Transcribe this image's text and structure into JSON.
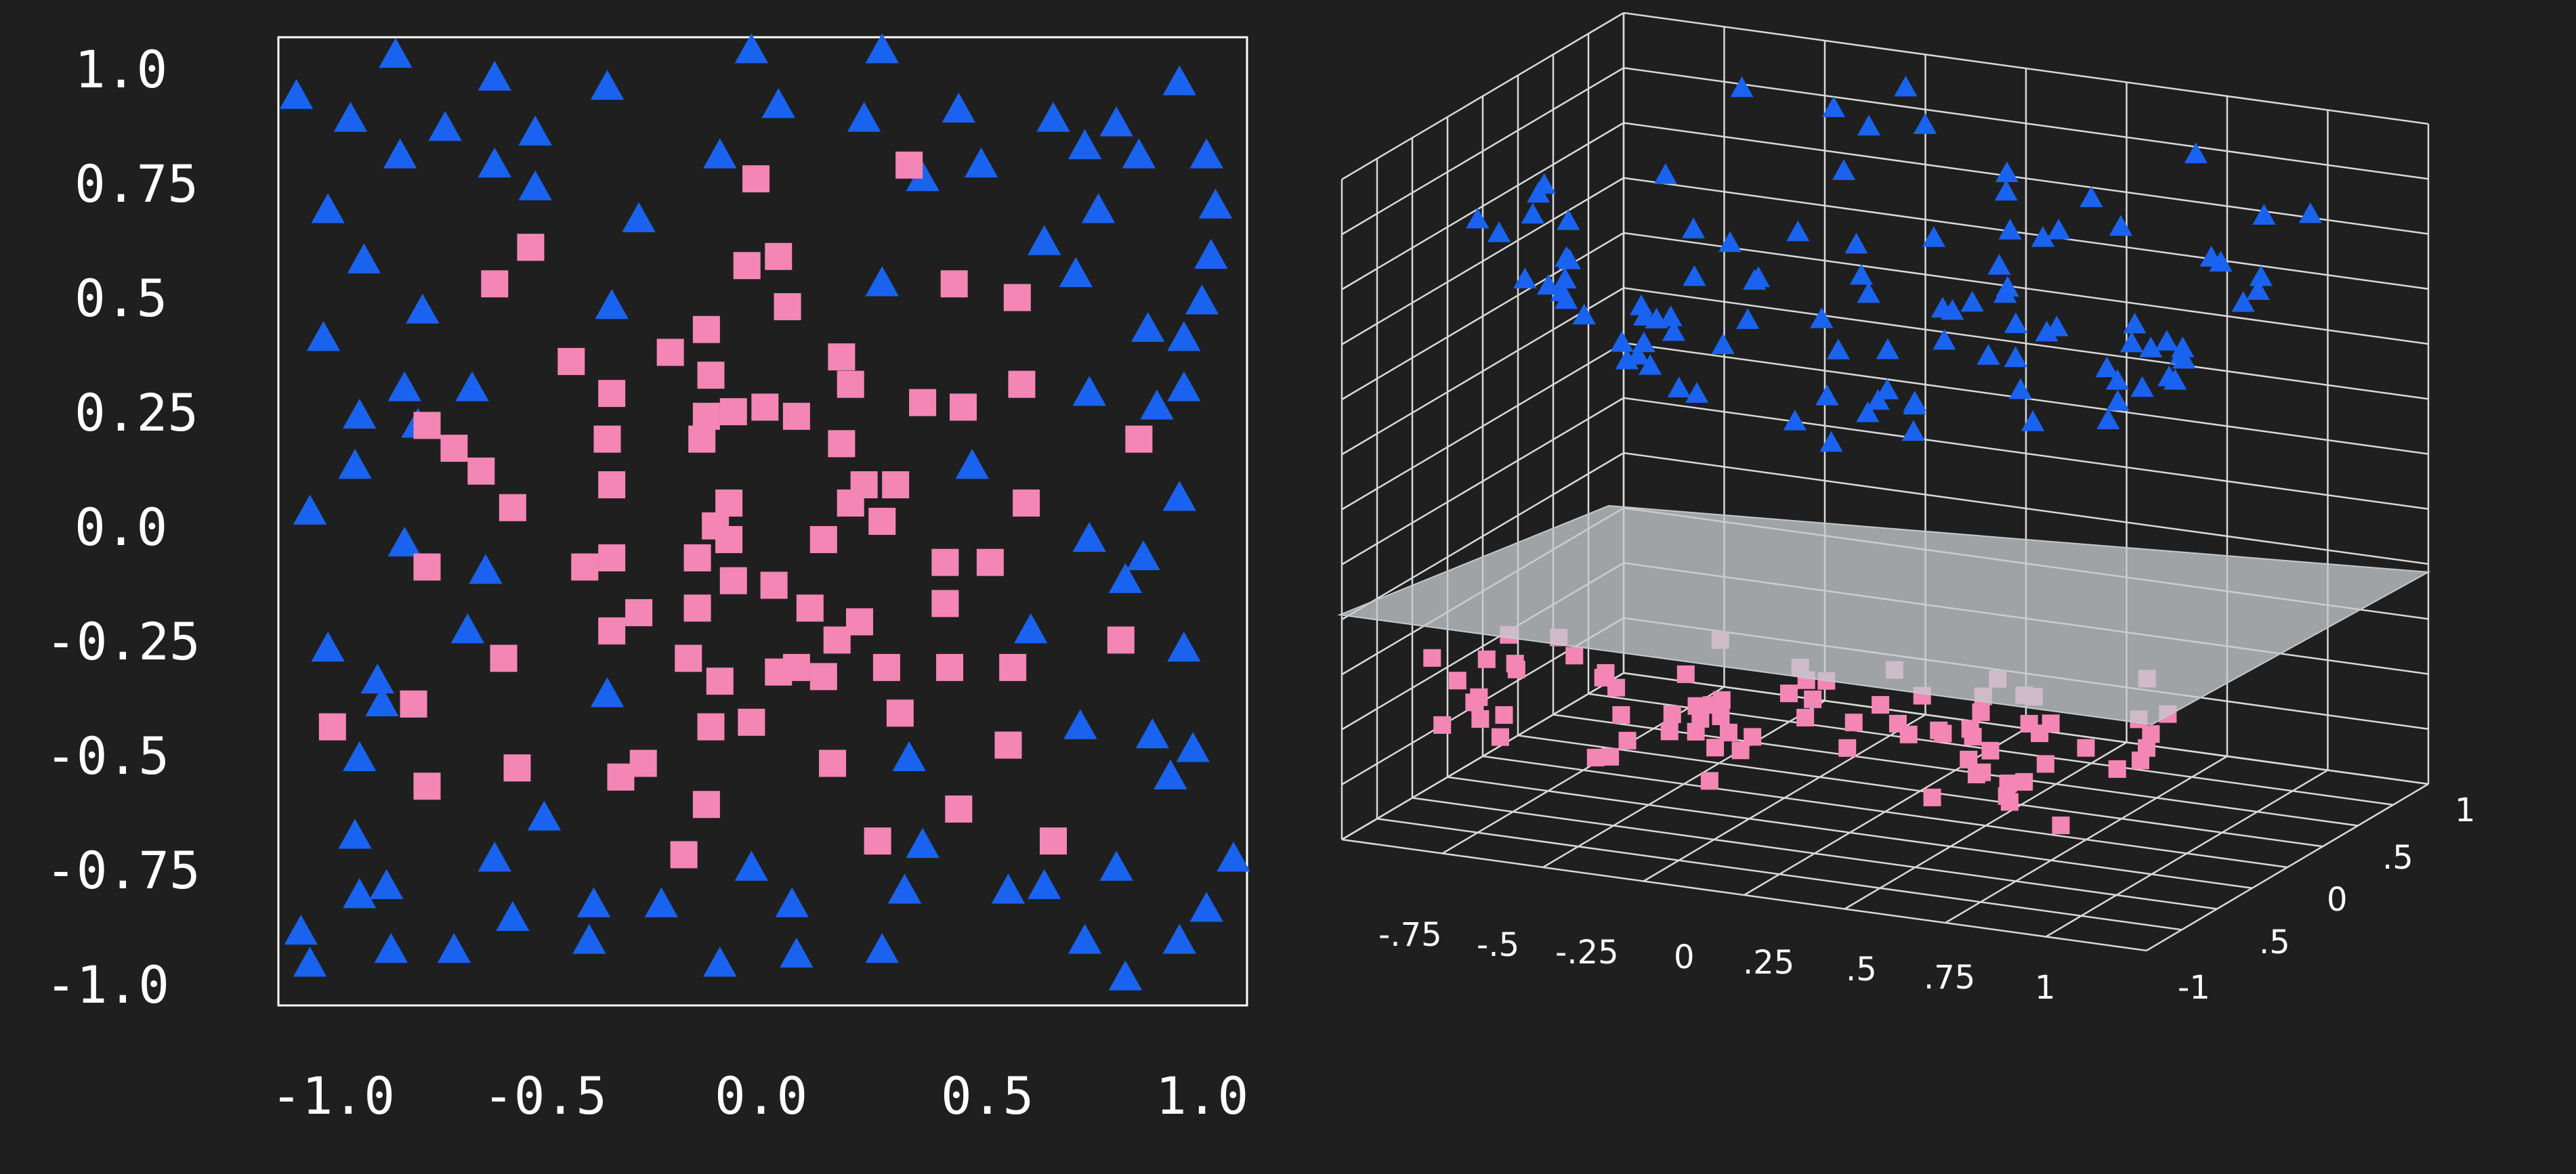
{
  "colors": {
    "background": "#1f1f1f",
    "outer_class_triangle": "#1a63f0",
    "inner_class_square": "#f486b5",
    "frame": "#ffffff",
    "grid": "#d9d9d9",
    "plane": "#c4c9cc"
  },
  "chart_data": [
    {
      "type": "scatter",
      "title": "",
      "xlabel": "",
      "ylabel": "",
      "xlim": [
        -1.1,
        1.05
      ],
      "ylim": [
        -1.05,
        1.07
      ],
      "grid": false,
      "legend": "none",
      "x_ticks": [
        "-1.0",
        "-0.5",
        "0.0",
        "0.5",
        "1.0"
      ],
      "y_ticks": [
        "1.0",
        "0.75",
        "0.5",
        "0.25",
        "0.0",
        "-0.25",
        "-0.5",
        "-0.75",
        "-1.0"
      ],
      "series": [
        {
          "marker": "triangle",
          "color": "#1a63f0",
          "points": [
            [
              -1.06,
              0.94
            ],
            [
              -0.84,
              1.03
            ],
            [
              -0.62,
              0.98
            ],
            [
              -0.37,
              0.96
            ],
            [
              -0.05,
              1.04
            ],
            [
              0.24,
              1.04
            ],
            [
              -0.94,
              0.89
            ],
            [
              -0.73,
              0.87
            ],
            [
              -0.53,
              0.86
            ],
            [
              0.01,
              0.92
            ],
            [
              0.2,
              0.89
            ],
            [
              0.41,
              0.91
            ],
            [
              0.62,
              0.89
            ],
            [
              0.76,
              0.88
            ],
            [
              0.9,
              0.97
            ],
            [
              -0.83,
              0.81
            ],
            [
              -0.62,
              0.79
            ],
            [
              -0.12,
              0.81
            ],
            [
              0.33,
              0.76
            ],
            [
              0.46,
              0.79
            ],
            [
              0.69,
              0.83
            ],
            [
              0.81,
              0.81
            ],
            [
              0.96,
              0.81
            ],
            [
              -0.99,
              0.69
            ],
            [
              -0.53,
              0.74
            ],
            [
              -0.3,
              0.67
            ],
            [
              0.72,
              0.69
            ],
            [
              0.98,
              0.7
            ],
            [
              -0.91,
              0.58
            ],
            [
              0.6,
              0.62
            ],
            [
              0.97,
              0.59
            ],
            [
              -0.78,
              0.47
            ],
            [
              -0.36,
              0.48
            ],
            [
              0.24,
              0.53
            ],
            [
              0.67,
              0.55
            ],
            [
              0.95,
              0.49
            ],
            [
              -1.0,
              0.41
            ],
            [
              0.83,
              0.43
            ],
            [
              0.91,
              0.41
            ],
            [
              -0.82,
              0.3
            ],
            [
              -0.67,
              0.3
            ],
            [
              -0.92,
              0.24
            ],
            [
              0.7,
              0.29
            ],
            [
              0.91,
              0.3
            ],
            [
              -0.79,
              0.22
            ],
            [
              0.85,
              0.26
            ],
            [
              -0.93,
              0.13
            ],
            [
              0.44,
              0.13
            ],
            [
              -1.03,
              0.03
            ],
            [
              0.9,
              0.06
            ],
            [
              -0.82,
              -0.04
            ],
            [
              -0.64,
              -0.1
            ],
            [
              0.7,
              -0.03
            ],
            [
              0.82,
              -0.07
            ],
            [
              0.78,
              -0.12
            ],
            [
              -0.68,
              -0.23
            ],
            [
              0.57,
              -0.23
            ],
            [
              -0.99,
              -0.27
            ],
            [
              0.91,
              -0.27
            ],
            [
              -0.88,
              -0.34
            ],
            [
              -0.37,
              -0.37
            ],
            [
              0.68,
              -0.44
            ],
            [
              -0.87,
              -0.39
            ],
            [
              0.84,
              -0.46
            ],
            [
              -0.92,
              -0.51
            ],
            [
              0.3,
              -0.51
            ],
            [
              0.93,
              -0.49
            ],
            [
              0.88,
              -0.55
            ],
            [
              -0.51,
              -0.64
            ],
            [
              -0.93,
              -0.68
            ],
            [
              0.33,
              -0.7
            ],
            [
              -0.62,
              -0.73
            ],
            [
              -0.05,
              -0.75
            ],
            [
              -0.86,
              -0.79
            ],
            [
              -0.92,
              -0.81
            ],
            [
              0.29,
              -0.8
            ],
            [
              0.52,
              -0.8
            ],
            [
              0.6,
              -0.79
            ],
            [
              0.76,
              -0.75
            ],
            [
              1.02,
              -0.73
            ],
            [
              -0.58,
              -0.86
            ],
            [
              -0.4,
              -0.83
            ],
            [
              -0.25,
              -0.83
            ],
            [
              0.04,
              -0.83
            ],
            [
              0.96,
              -0.84
            ],
            [
              -1.05,
              -0.89
            ],
            [
              -0.41,
              -0.91
            ],
            [
              0.69,
              -0.91
            ],
            [
              0.9,
              -0.91
            ],
            [
              -0.85,
              -0.93
            ],
            [
              -0.71,
              -0.93
            ],
            [
              0.24,
              -0.93
            ],
            [
              -1.03,
              -0.96
            ],
            [
              -0.12,
              -0.96
            ],
            [
              0.05,
              -0.94
            ],
            [
              0.78,
              -0.99
            ]
          ]
        },
        {
          "marker": "square",
          "color": "#f486b5",
          "points": [
            [
              -0.04,
              0.76
            ],
            [
              0.3,
              0.79
            ],
            [
              -0.54,
              0.61
            ],
            [
              -0.62,
              0.53
            ],
            [
              -0.06,
              0.57
            ],
            [
              0.01,
              0.59
            ],
            [
              0.03,
              0.48
            ],
            [
              0.4,
              0.53
            ],
            [
              0.54,
              0.5
            ],
            [
              -0.45,
              0.36
            ],
            [
              -0.23,
              0.38
            ],
            [
              -0.15,
              0.43
            ],
            [
              0.15,
              0.37
            ],
            [
              0.17,
              0.31
            ],
            [
              -0.36,
              0.29
            ],
            [
              -0.14,
              0.33
            ],
            [
              -0.15,
              0.24
            ],
            [
              -0.09,
              0.25
            ],
            [
              -0.02,
              0.26
            ],
            [
              0.05,
              0.24
            ],
            [
              0.33,
              0.27
            ],
            [
              0.42,
              0.26
            ],
            [
              0.55,
              0.31
            ],
            [
              0.81,
              0.19
            ],
            [
              -0.77,
              0.22
            ],
            [
              -0.71,
              0.17
            ],
            [
              -0.65,
              0.12
            ],
            [
              -0.37,
              0.19
            ],
            [
              -0.16,
              0.19
            ],
            [
              0.15,
              0.18
            ],
            [
              -0.58,
              0.04
            ],
            [
              -0.36,
              0.09
            ],
            [
              -0.1,
              0.05
            ],
            [
              -0.13,
              0.0
            ],
            [
              -0.1,
              -0.03
            ],
            [
              0.17,
              0.05
            ],
            [
              0.27,
              0.09
            ],
            [
              0.2,
              0.09
            ],
            [
              0.24,
              0.01
            ],
            [
              0.56,
              0.05
            ],
            [
              0.11,
              -0.03
            ],
            [
              -0.42,
              -0.09
            ],
            [
              -0.36,
              -0.07
            ],
            [
              -0.17,
              -0.07
            ],
            [
              -0.09,
              -0.12
            ],
            [
              0.0,
              -0.13
            ],
            [
              0.38,
              -0.08
            ],
            [
              0.48,
              -0.08
            ],
            [
              -0.77,
              -0.09
            ],
            [
              -0.36,
              -0.23
            ],
            [
              -0.3,
              -0.19
            ],
            [
              -0.17,
              -0.18
            ],
            [
              0.08,
              -0.18
            ],
            [
              0.19,
              -0.21
            ],
            [
              0.38,
              -0.17
            ],
            [
              -0.6,
              -0.29
            ],
            [
              -0.19,
              -0.29
            ],
            [
              -0.12,
              -0.34
            ],
            [
              0.01,
              -0.32
            ],
            [
              0.05,
              -0.31
            ],
            [
              0.11,
              -0.33
            ],
            [
              0.14,
              -0.25
            ],
            [
              0.25,
              -0.31
            ],
            [
              0.39,
              -0.31
            ],
            [
              0.53,
              -0.31
            ],
            [
              0.77,
              -0.25
            ],
            [
              -0.8,
              -0.39
            ],
            [
              -0.98,
              -0.44
            ],
            [
              -0.14,
              -0.44
            ],
            [
              -0.05,
              -0.43
            ],
            [
              0.28,
              -0.41
            ],
            [
              -0.57,
              -0.53
            ],
            [
              -0.34,
              -0.55
            ],
            [
              -0.29,
              -0.52
            ],
            [
              0.13,
              -0.52
            ],
            [
              0.52,
              -0.48
            ],
            [
              -0.77,
              -0.57
            ],
            [
              -0.15,
              -0.61
            ],
            [
              0.41,
              -0.62
            ],
            [
              -0.2,
              -0.72
            ],
            [
              0.23,
              -0.69
            ],
            [
              0.62,
              -0.69
            ]
          ]
        }
      ]
    },
    {
      "type": "scatter",
      "title": "",
      "xlabel": "",
      "ylabel": "",
      "x_ticks": [
        "-.75",
        "-.5",
        "-.25",
        "0",
        ".25",
        ".5",
        ".75",
        "1"
      ],
      "y_ticks": [
        "-1",
        ".5",
        "0",
        ".5",
        "1"
      ],
      "grid": true,
      "legend": "none",
      "separating_plane": true,
      "series": [
        {
          "marker": "triangle",
          "color": "#1a63f0",
          "above_plane": true,
          "count": 100
        },
        {
          "marker": "square",
          "color": "#f486b5",
          "below_plane": true,
          "count": 80
        }
      ]
    }
  ]
}
